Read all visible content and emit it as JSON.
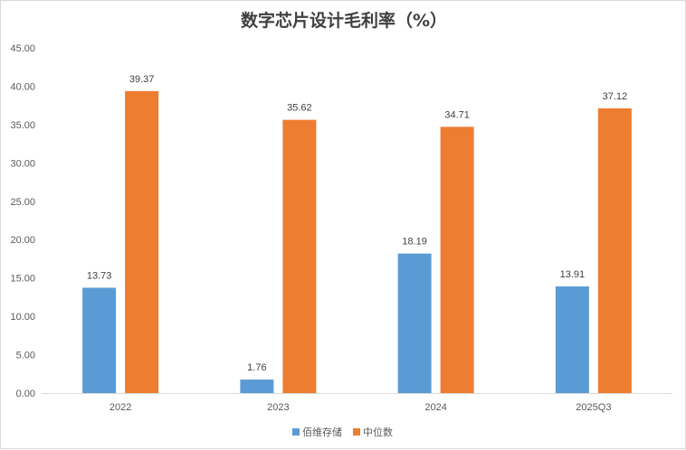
{
  "chart_data": {
    "type": "bar",
    "title": "数字芯片设计毛利率（%）",
    "categories": [
      "2022",
      "2023",
      "2024",
      "2025Q3"
    ],
    "series": [
      {
        "name": "佰维存储",
        "values": [
          13.73,
          1.76,
          18.19,
          13.91
        ],
        "color": "#5b9bd5"
      },
      {
        "name": "中位数",
        "values": [
          39.37,
          35.62,
          34.71,
          37.12
        ],
        "color": "#ed7d31"
      }
    ],
    "ylim": [
      0,
      45
    ],
    "yticks": [
      "0.00",
      "5.00",
      "10.00",
      "15.00",
      "20.00",
      "25.00",
      "30.00",
      "35.00",
      "40.00",
      "45.00"
    ],
    "grid": false,
    "legend": "bottom"
  }
}
